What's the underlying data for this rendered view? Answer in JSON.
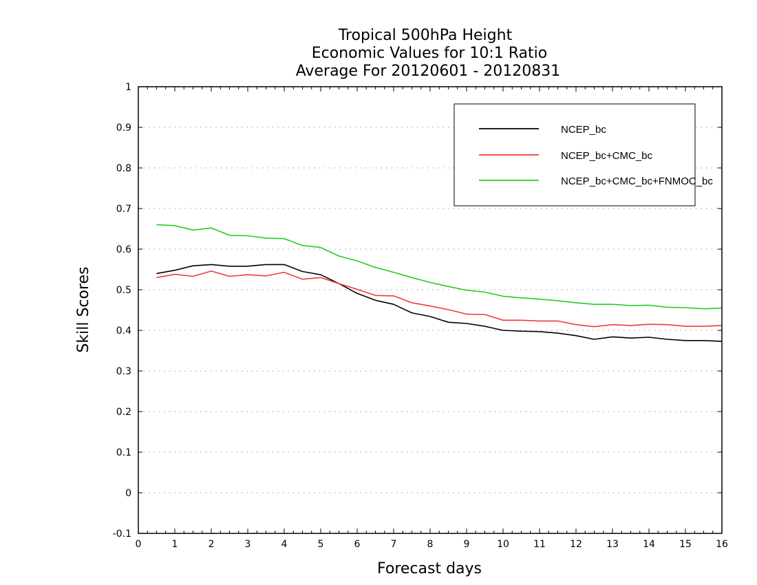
{
  "chart_data": {
    "type": "line",
    "title": [
      "Tropical 500hPa Height",
      "Economic Values for 10:1 Ratio",
      "Average For 20120601 - 20120831"
    ],
    "xlabel": "Forecast days",
    "ylabel": "Skill Scores",
    "xlim": [
      0,
      16
    ],
    "ylim": [
      -0.1,
      1
    ],
    "xticks": [
      0,
      1,
      2,
      3,
      4,
      5,
      6,
      7,
      8,
      9,
      10,
      11,
      12,
      13,
      14,
      15,
      16
    ],
    "yticks": [
      -0.1,
      0,
      0.1,
      0.2,
      0.3,
      0.4,
      0.5,
      0.6,
      0.7,
      0.8,
      0.9,
      1
    ],
    "ytick_labels": [
      "-0.1",
      "0",
      "0.1",
      "0.2",
      "0.3",
      "0.4",
      "0.5",
      "0.6",
      "0.7",
      "0.8",
      "0.9",
      "1"
    ],
    "grid": true,
    "legend": "top-right",
    "x": [
      0.5,
      1.0,
      1.5,
      2.0,
      2.5,
      3.0,
      3.5,
      4.0,
      4.5,
      5.0,
      5.5,
      6.0,
      6.5,
      7.0,
      7.5,
      8.0,
      8.5,
      9.0,
      9.5,
      10.0,
      10.5,
      11.0,
      11.5,
      12.0,
      12.5,
      13.0,
      13.5,
      14.0,
      14.5,
      15.0,
      15.5,
      16.0
    ],
    "series": [
      {
        "name": "NCEP_bc",
        "color": "#000000",
        "values": [
          0.54,
          0.548,
          0.559,
          0.562,
          0.558,
          0.558,
          0.562,
          0.562,
          0.545,
          0.537,
          0.515,
          0.491,
          0.474,
          0.464,
          0.443,
          0.434,
          0.42,
          0.417,
          0.41,
          0.4,
          0.398,
          0.397,
          0.393,
          0.387,
          0.378,
          0.384,
          0.381,
          0.383,
          0.378,
          0.375,
          0.375,
          0.373
        ]
      },
      {
        "name": "NCEP_bc+CMC_bc",
        "color": "#ee3a3a",
        "values": [
          0.53,
          0.538,
          0.533,
          0.546,
          0.533,
          0.537,
          0.534,
          0.543,
          0.526,
          0.53,
          0.515,
          0.501,
          0.486,
          0.485,
          0.468,
          0.46,
          0.451,
          0.44,
          0.439,
          0.425,
          0.425,
          0.423,
          0.423,
          0.414,
          0.409,
          0.414,
          0.412,
          0.415,
          0.414,
          0.41,
          0.41,
          0.412
        ]
      },
      {
        "name": "NCEP_bc+CMC_bc+FNMOC_bc",
        "color": "#22cc22",
        "values": [
          0.66,
          0.658,
          0.647,
          0.652,
          0.634,
          0.633,
          0.627,
          0.626,
          0.609,
          0.604,
          0.583,
          0.571,
          0.555,
          0.543,
          0.53,
          0.518,
          0.508,
          0.499,
          0.494,
          0.484,
          0.48,
          0.477,
          0.473,
          0.468,
          0.464,
          0.464,
          0.461,
          0.462,
          0.457,
          0.456,
          0.453,
          0.455
        ]
      }
    ]
  }
}
